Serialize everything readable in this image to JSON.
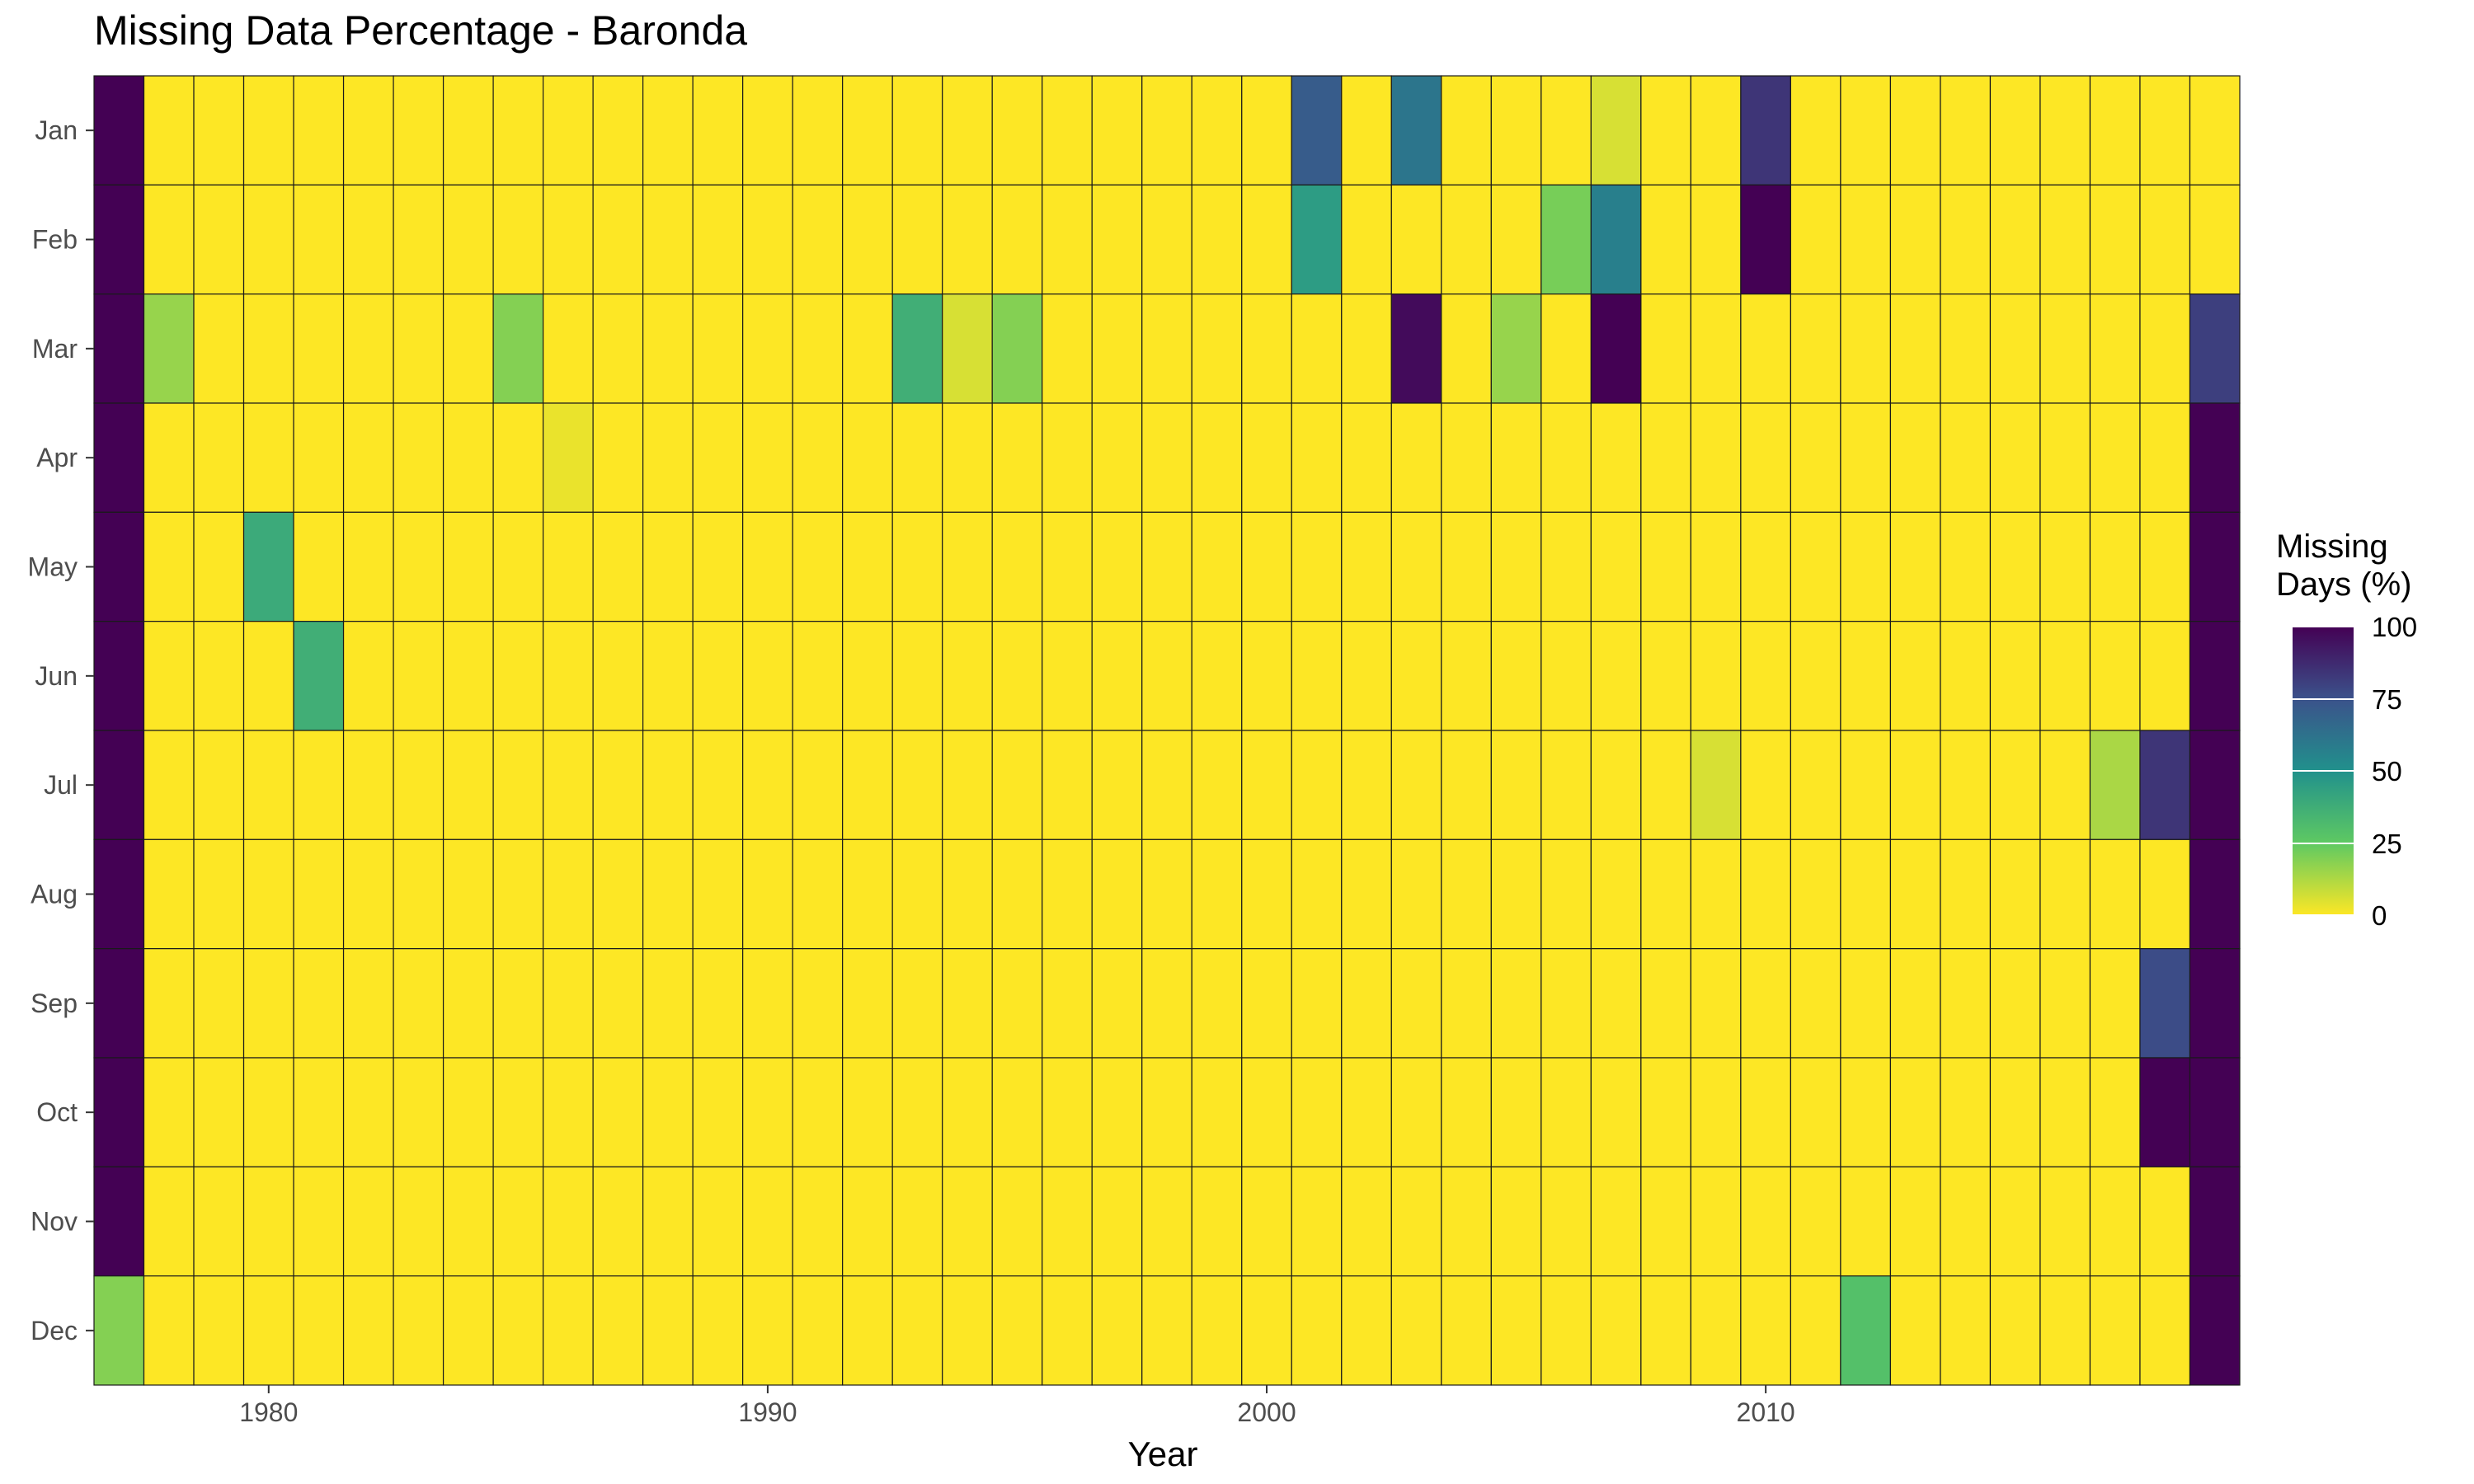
{
  "chart_data": {
    "type": "heatmap",
    "title": "Missing Data Percentage - Baronda",
    "xlabel": "Year",
    "ylabel": "",
    "x_ticks": [
      1980,
      1990,
      2000,
      2010
    ],
    "years": [
      1977,
      1978,
      1979,
      1980,
      1981,
      1982,
      1983,
      1984,
      1985,
      1986,
      1987,
      1988,
      1989,
      1990,
      1991,
      1992,
      1993,
      1994,
      1995,
      1996,
      1997,
      1998,
      1999,
      2000,
      2001,
      2002,
      2003,
      2004,
      2005,
      2006,
      2007,
      2008,
      2009,
      2010,
      2011,
      2012,
      2013,
      2014,
      2015,
      2016,
      2017,
      2018,
      2019
    ],
    "months": [
      "Jan",
      "Feb",
      "Mar",
      "Apr",
      "May",
      "Jun",
      "Jul",
      "Aug",
      "Sep",
      "Oct",
      "Nov",
      "Dec"
    ],
    "values": [
      [
        100,
        0,
        0,
        0,
        0,
        0,
        0,
        0,
        0,
        0,
        0,
        0,
        0,
        0,
        0,
        0,
        0,
        0,
        0,
        0,
        0,
        0,
        0,
        0,
        71,
        0,
        61,
        0,
        0,
        0,
        6,
        0,
        0,
        84,
        0,
        0,
        0,
        0,
        0,
        0,
        0,
        0,
        0
      ],
      [
        100,
        0,
        0,
        0,
        0,
        0,
        0,
        0,
        0,
        0,
        0,
        0,
        0,
        0,
        0,
        0,
        0,
        0,
        0,
        0,
        0,
        0,
        0,
        0,
        45,
        0,
        0,
        0,
        0,
        21,
        57,
        0,
        0,
        100,
        0,
        0,
        0,
        0,
        0,
        0,
        0,
        0,
        0
      ],
      [
        100,
        16,
        0,
        0,
        0,
        0,
        0,
        0,
        19,
        0,
        0,
        0,
        0,
        0,
        0,
        0,
        37,
        6,
        19,
        0,
        0,
        0,
        0,
        0,
        0,
        0,
        97,
        0,
        16,
        0,
        100,
        0,
        0,
        0,
        0,
        0,
        0,
        0,
        0,
        0,
        0,
        0,
        81
      ],
      [
        100,
        0,
        0,
        0,
        0,
        0,
        0,
        0,
        0,
        3,
        0,
        0,
        0,
        0,
        0,
        0,
        0,
        0,
        0,
        0,
        0,
        0,
        0,
        0,
        0,
        0,
        0,
        0,
        0,
        0,
        0,
        0,
        0,
        0,
        0,
        0,
        0,
        0,
        0,
        0,
        0,
        0,
        100
      ],
      [
        100,
        0,
        0,
        39,
        0,
        0,
        0,
        0,
        0,
        0,
        0,
        0,
        0,
        0,
        0,
        0,
        0,
        0,
        0,
        0,
        0,
        0,
        0,
        0,
        0,
        0,
        0,
        0,
        0,
        0,
        0,
        0,
        0,
        0,
        0,
        0,
        0,
        0,
        0,
        0,
        0,
        0,
        100
      ],
      [
        100,
        0,
        0,
        0,
        37,
        0,
        0,
        0,
        0,
        0,
        0,
        0,
        0,
        0,
        0,
        0,
        0,
        0,
        0,
        0,
        0,
        0,
        0,
        0,
        0,
        0,
        0,
        0,
        0,
        0,
        0,
        0,
        0,
        0,
        0,
        0,
        0,
        0,
        0,
        0,
        0,
        0,
        100
      ],
      [
        100,
        0,
        0,
        0,
        0,
        0,
        0,
        0,
        0,
        0,
        0,
        0,
        0,
        0,
        0,
        0,
        0,
        0,
        0,
        0,
        0,
        0,
        0,
        0,
        0,
        0,
        0,
        0,
        0,
        0,
        0,
        0,
        6,
        0,
        0,
        0,
        0,
        0,
        0,
        0,
        13,
        84,
        100
      ],
      [
        100,
        0,
        0,
        0,
        0,
        0,
        0,
        0,
        0,
        0,
        0,
        0,
        0,
        0,
        0,
        0,
        0,
        0,
        0,
        0,
        0,
        0,
        0,
        0,
        0,
        0,
        0,
        0,
        0,
        0,
        0,
        0,
        0,
        0,
        0,
        0,
        0,
        0,
        0,
        0,
        0,
        0,
        100
      ],
      [
        100,
        0,
        0,
        0,
        0,
        0,
        0,
        0,
        0,
        0,
        0,
        0,
        0,
        0,
        0,
        0,
        0,
        0,
        0,
        0,
        0,
        0,
        0,
        0,
        0,
        0,
        0,
        0,
        0,
        0,
        0,
        0,
        0,
        0,
        0,
        0,
        0,
        0,
        0,
        0,
        0,
        77,
        100
      ],
      [
        100,
        0,
        0,
        0,
        0,
        0,
        0,
        0,
        0,
        0,
        0,
        0,
        0,
        0,
        0,
        0,
        0,
        0,
        0,
        0,
        0,
        0,
        0,
        0,
        0,
        0,
        0,
        0,
        0,
        0,
        0,
        0,
        0,
        0,
        0,
        0,
        0,
        0,
        0,
        0,
        0,
        100,
        100
      ],
      [
        100,
        0,
        0,
        0,
        0,
        0,
        0,
        0,
        0,
        0,
        0,
        0,
        0,
        0,
        0,
        0,
        0,
        0,
        0,
        0,
        0,
        0,
        0,
        0,
        0,
        0,
        0,
        0,
        0,
        0,
        0,
        0,
        0,
        0,
        0,
        0,
        0,
        0,
        0,
        0,
        0,
        0,
        100
      ],
      [
        19,
        0,
        0,
        0,
        0,
        0,
        0,
        0,
        0,
        0,
        0,
        0,
        0,
        0,
        0,
        0,
        0,
        0,
        0,
        0,
        0,
        0,
        0,
        0,
        0,
        0,
        0,
        0,
        0,
        0,
        0,
        0,
        0,
        0,
        0,
        29,
        0,
        0,
        0,
        0,
        0,
        0,
        100
      ]
    ],
    "value_range": [
      0,
      100
    ],
    "colormap": "viridis",
    "grid": false,
    "legend": {
      "title_lines": [
        "Missing",
        "Days (%)"
      ],
      "ticks": [
        100,
        75,
        50,
        25,
        0
      ],
      "placement": "right"
    }
  }
}
